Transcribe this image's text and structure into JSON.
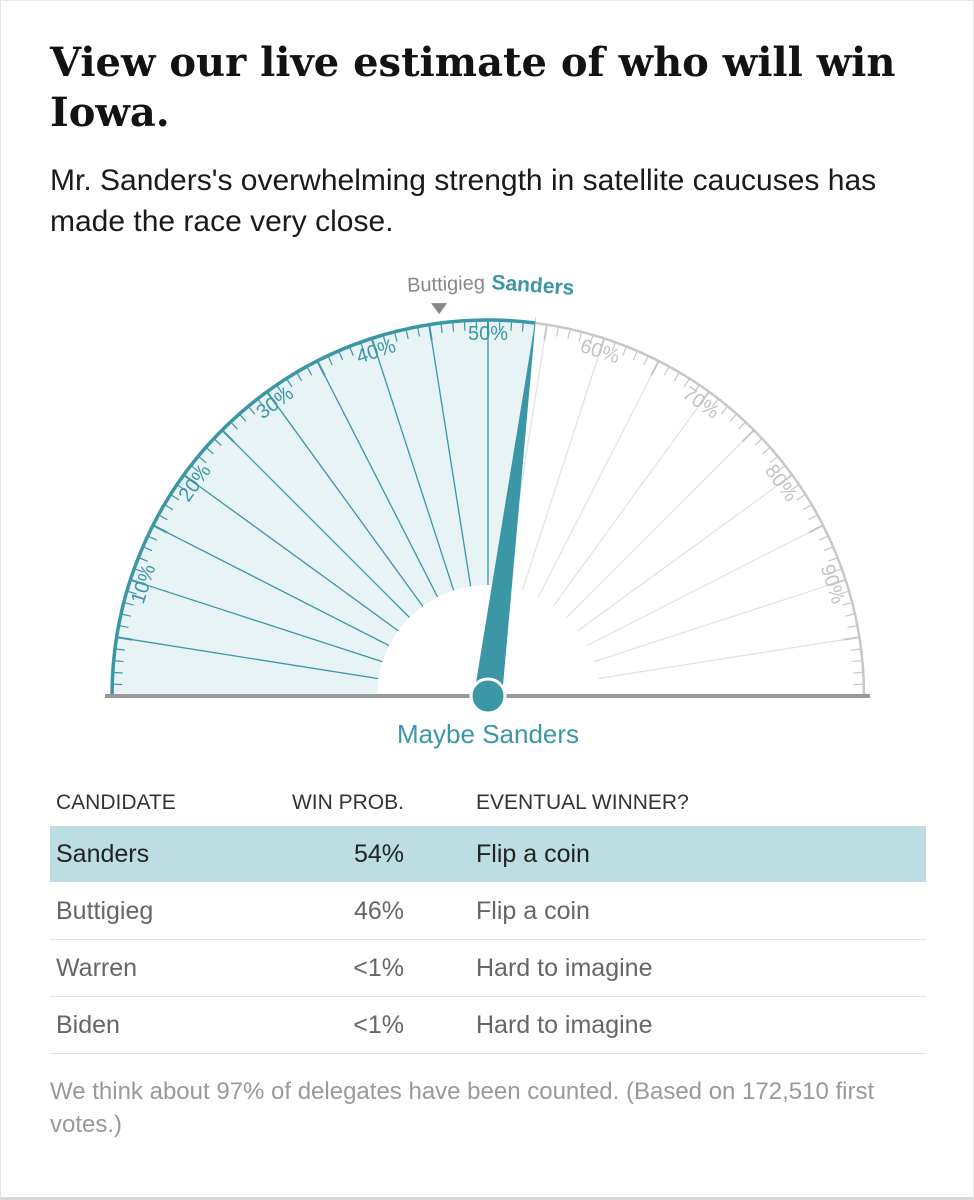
{
  "headline": "View our live estimate of who will win Iowa.",
  "dek": "Mr. Sanders's overwhelming strength in satellite caucuses has made the race very close.",
  "chart_data": {
    "type": "gauge",
    "range": [
      0,
      100
    ],
    "tick_labels": [
      "10%",
      "20%",
      "30%",
      "40%",
      "50%",
      "60%",
      "70%",
      "80%",
      "90%"
    ],
    "tick_values": [
      10,
      20,
      30,
      40,
      50,
      60,
      70,
      80,
      90
    ],
    "needle_value": 54,
    "marker_value": 46,
    "marker_label": "Buttigieg",
    "needle_label": "Sanders",
    "verdict": "Maybe Sanders",
    "colors": {
      "sanders": "#3b97a6",
      "fill": "#e8f3f6",
      "inactive": "#c8c8c8",
      "baseline": "#999999"
    }
  },
  "table": {
    "headers": {
      "candidate": "CANDIDATE",
      "prob": "WIN PROB.",
      "winner": "EVENTUAL WINNER?"
    },
    "rows": [
      {
        "candidate": "Sanders",
        "prob": "54%",
        "winner": "Flip a coin"
      },
      {
        "candidate": "Buttigieg",
        "prob": "46%",
        "winner": "Flip a coin"
      },
      {
        "candidate": "Warren",
        "prob": "<1%",
        "winner": "Hard to imagine"
      },
      {
        "candidate": "Biden",
        "prob": "<1%",
        "winner": "Hard to imagine"
      }
    ]
  },
  "footnote": "We think about 97% of delegates have been counted. (Based on 172,510 first votes.)"
}
